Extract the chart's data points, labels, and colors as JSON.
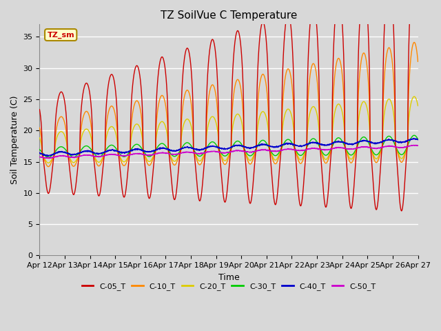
{
  "title": "TZ SoilVue C Temperature",
  "xlabel": "Time",
  "ylabel": "Soil Temperature (C)",
  "ylim": [
    0,
    37
  ],
  "yticks": [
    0,
    5,
    10,
    15,
    20,
    25,
    30,
    35
  ],
  "x_labels": [
    "Apr 12",
    "Apr 13",
    "Apr 14",
    "Apr 15",
    "Apr 16",
    "Apr 17",
    "Apr 18",
    "Apr 19",
    "Apr 20",
    "Apr 21",
    "Apr 22",
    "Apr 23",
    "Apr 24",
    "Apr 25",
    "Apr 26",
    "Apr 27"
  ],
  "legend_label": "TZ_sm",
  "series_colors": {
    "C-05_T": "#cc0000",
    "C-10_T": "#ff8800",
    "C-20_T": "#ddcc00",
    "C-30_T": "#00cc00",
    "C-40_T": "#0000cc",
    "C-50_T": "#cc00cc"
  },
  "bg_color": "#d8d8d8",
  "plot_bg_color": "#d8d8d8",
  "grid_color": "#ffffff",
  "title_fontsize": 11,
  "axis_label_fontsize": 9,
  "tick_fontsize": 8
}
